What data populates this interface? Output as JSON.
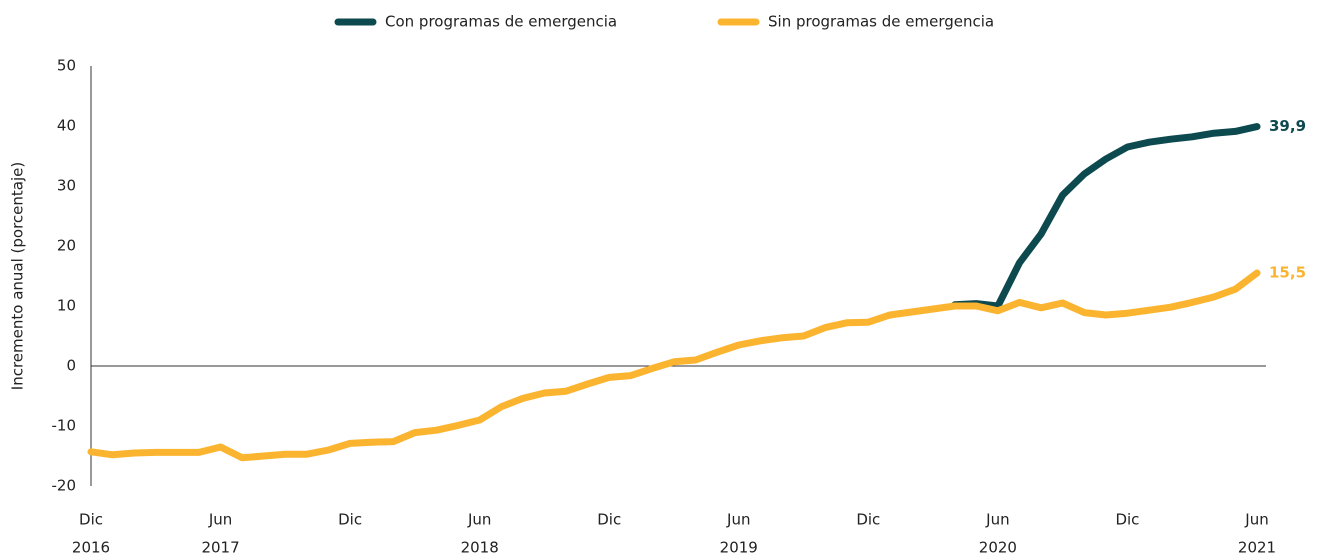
{
  "chart_data": {
    "type": "line",
    "y_label": "Incremento anual (porcentaje)",
    "categories": [
      "Dic",
      null,
      null,
      null,
      null,
      null,
      "Jun",
      null,
      null,
      null,
      null,
      null,
      "Dic",
      null,
      null,
      null,
      null,
      null,
      "Jun",
      null,
      null,
      null,
      null,
      null,
      "Dic",
      null,
      null,
      null,
      null,
      null,
      "Jun",
      null,
      null,
      null,
      null,
      null,
      "Dic",
      null,
      null,
      null,
      null,
      null,
      "Jun",
      null,
      null,
      null,
      null,
      null,
      "Dic",
      null,
      null,
      null,
      null,
      null,
      "Jun"
    ],
    "x_year_labels": [
      "2016",
      null,
      null,
      null,
      null,
      null,
      "2017",
      null,
      null,
      null,
      null,
      null,
      null,
      null,
      null,
      null,
      null,
      null,
      "2018",
      null,
      null,
      null,
      null,
      null,
      null,
      null,
      null,
      null,
      null,
      null,
      "2019",
      null,
      null,
      null,
      null,
      null,
      null,
      null,
      null,
      null,
      null,
      null,
      "2020",
      null,
      null,
      null,
      null,
      null,
      null,
      null,
      null,
      null,
      null,
      null,
      "2021"
    ],
    "series": [
      {
        "name": "Con programas de emergencia",
        "color": "#0d4a4f",
        "values": [
          null,
          null,
          null,
          null,
          null,
          null,
          null,
          null,
          null,
          null,
          null,
          null,
          null,
          null,
          null,
          null,
          null,
          null,
          null,
          null,
          null,
          null,
          null,
          null,
          null,
          null,
          null,
          null,
          null,
          null,
          null,
          null,
          null,
          null,
          null,
          null,
          null,
          null,
          null,
          null,
          10.2,
          10.4,
          10.0,
          17.2,
          22.0,
          28.5,
          32.0,
          34.5,
          36.5,
          37.3,
          37.8,
          38.2,
          38.8,
          39.1,
          39.9
        ],
        "end_label": "39,9"
      },
      {
        "name": "Sin programas de emergencia",
        "color": "#fbb430",
        "values": [
          -14.3,
          -14.8,
          -14.5,
          -14.4,
          -14.4,
          -14.4,
          -13.5,
          -15.3,
          -15.0,
          -14.7,
          -14.7,
          -14.0,
          -12.9,
          -12.7,
          -12.6,
          -11.1,
          -10.7,
          -9.9,
          -9.0,
          -6.8,
          -5.4,
          -4.5,
          -4.2,
          -3.0,
          -1.9,
          -1.6,
          -0.4,
          0.7,
          1.0,
          2.3,
          3.5,
          4.2,
          4.7,
          5.0,
          6.4,
          7.2,
          7.3,
          8.5,
          9.0,
          9.5,
          10.0,
          10.0,
          9.2,
          10.6,
          9.7,
          10.5,
          8.9,
          8.5,
          8.8,
          9.3,
          9.8,
          10.6,
          11.5,
          12.8,
          15.5
        ],
        "end_label": "15,5"
      }
    ],
    "ylim": [
      -20,
      50
    ],
    "yticks": [
      -20,
      -10,
      0,
      10,
      20,
      30,
      40,
      50
    ],
    "grid": false,
    "legend": "top"
  }
}
